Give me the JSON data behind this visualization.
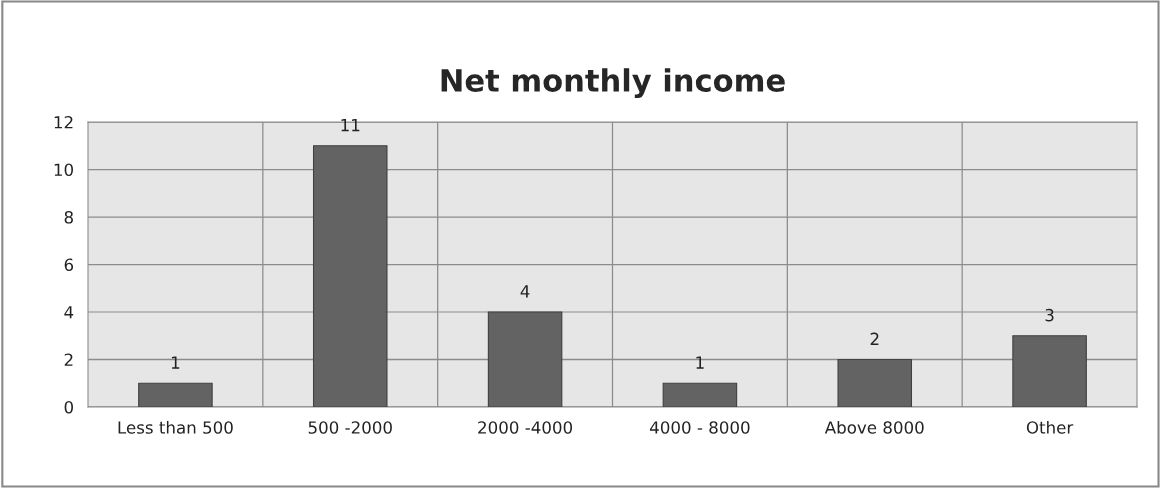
{
  "chart_data": {
    "type": "bar",
    "title": "Net monthly income",
    "categories": [
      "Less than 500",
      "500 -2000",
      "2000 -4000",
      "4000 - 8000",
      "Above 8000",
      "Other"
    ],
    "values": [
      1,
      11,
      4,
      1,
      2,
      3
    ],
    "color": "#636363",
    "ylim": [
      0,
      12
    ],
    "yticks": [
      0,
      2,
      4,
      6,
      8,
      10,
      12
    ],
    "grid": true,
    "data_labels": true
  }
}
